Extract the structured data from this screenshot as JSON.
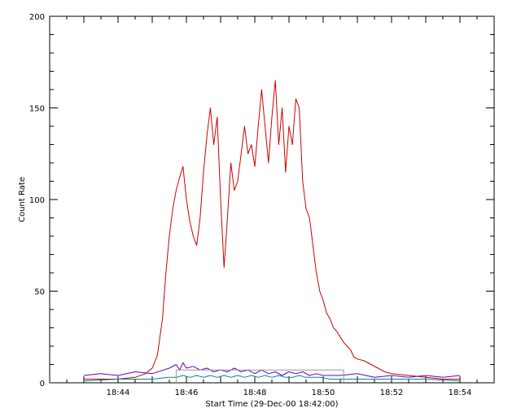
{
  "chart_data": {
    "type": "line",
    "xlabel": "Start Time (29-Dec-00 18:42:00)",
    "ylabel": "Count Rate",
    "xlim": [
      0,
      13
    ],
    "ylim": [
      0,
      200
    ],
    "xticks": [
      {
        "v": 2,
        "label": "18:44"
      },
      {
        "v": 4,
        "label": "18:46"
      },
      {
        "v": 6,
        "label": "18:48"
      },
      {
        "v": 8,
        "label": "18:50"
      },
      {
        "v": 10,
        "label": "18:52"
      },
      {
        "v": 12,
        "label": "18:54"
      }
    ],
    "yticks": [
      {
        "v": 0,
        "label": "0"
      },
      {
        "v": 50,
        "label": "50"
      },
      {
        "v": 100,
        "label": "100"
      },
      {
        "v": 150,
        "label": "150"
      },
      {
        "v": 200,
        "label": "200"
      }
    ],
    "series": [
      {
        "color": "#cc0000",
        "points": [
          [
            1.0,
            2
          ],
          [
            1.5,
            2
          ],
          [
            2.0,
            2
          ],
          [
            2.5,
            3
          ],
          [
            2.8,
            5
          ],
          [
            3.0,
            8
          ],
          [
            3.15,
            15
          ],
          [
            3.3,
            35
          ],
          [
            3.4,
            60
          ],
          [
            3.5,
            80
          ],
          [
            3.6,
            95
          ],
          [
            3.7,
            105
          ],
          [
            3.8,
            112
          ],
          [
            3.9,
            118
          ],
          [
            4.0,
            100
          ],
          [
            4.1,
            88
          ],
          [
            4.2,
            80
          ],
          [
            4.3,
            75
          ],
          [
            4.4,
            90
          ],
          [
            4.5,
            115
          ],
          [
            4.6,
            135
          ],
          [
            4.7,
            150
          ],
          [
            4.8,
            130
          ],
          [
            4.9,
            145
          ],
          [
            5.0,
            100
          ],
          [
            5.1,
            63
          ],
          [
            5.2,
            90
          ],
          [
            5.3,
            120
          ],
          [
            5.4,
            105
          ],
          [
            5.5,
            110
          ],
          [
            5.6,
            125
          ],
          [
            5.7,
            140
          ],
          [
            5.8,
            125
          ],
          [
            5.9,
            130
          ],
          [
            6.0,
            118
          ],
          [
            6.1,
            140
          ],
          [
            6.2,
            160
          ],
          [
            6.3,
            140
          ],
          [
            6.4,
            120
          ],
          [
            6.5,
            145
          ],
          [
            6.6,
            165
          ],
          [
            6.7,
            130
          ],
          [
            6.8,
            150
          ],
          [
            6.9,
            115
          ],
          [
            7.0,
            140
          ],
          [
            7.1,
            130
          ],
          [
            7.2,
            155
          ],
          [
            7.3,
            150
          ],
          [
            7.4,
            110
          ],
          [
            7.5,
            95
          ],
          [
            7.6,
            90
          ],
          [
            7.7,
            75
          ],
          [
            7.8,
            60
          ],
          [
            7.9,
            50
          ],
          [
            8.0,
            45
          ],
          [
            8.1,
            38
          ],
          [
            8.2,
            35
          ],
          [
            8.3,
            30
          ],
          [
            8.4,
            28
          ],
          [
            8.5,
            25
          ],
          [
            8.6,
            22
          ],
          [
            8.7,
            20
          ],
          [
            8.8,
            18
          ],
          [
            8.9,
            14
          ],
          [
            9.0,
            13
          ],
          [
            9.2,
            12
          ],
          [
            9.4,
            10
          ],
          [
            9.6,
            8
          ],
          [
            9.8,
            6
          ],
          [
            10.0,
            5
          ],
          [
            10.5,
            4
          ],
          [
            11.0,
            3
          ],
          [
            11.5,
            2
          ],
          [
            12.0,
            2
          ]
        ]
      },
      {
        "color": "#6600cc",
        "points": [
          [
            1.0,
            4
          ],
          [
            1.5,
            5
          ],
          [
            2.0,
            4
          ],
          [
            2.5,
            6
          ],
          [
            3.0,
            5
          ],
          [
            3.5,
            8
          ],
          [
            3.7,
            10
          ],
          [
            3.8,
            7
          ],
          [
            3.9,
            11
          ],
          [
            4.0,
            8
          ],
          [
            4.2,
            9
          ],
          [
            4.4,
            7
          ],
          [
            4.6,
            8
          ],
          [
            4.8,
            6
          ],
          [
            5.0,
            7
          ],
          [
            5.2,
            6
          ],
          [
            5.4,
            8
          ],
          [
            5.6,
            6
          ],
          [
            5.8,
            7
          ],
          [
            6.0,
            5
          ],
          [
            6.2,
            7
          ],
          [
            6.4,
            5
          ],
          [
            6.6,
            6
          ],
          [
            6.8,
            4
          ],
          [
            7.0,
            6
          ],
          [
            7.2,
            5
          ],
          [
            7.4,
            6
          ],
          [
            7.6,
            4
          ],
          [
            7.8,
            5
          ],
          [
            8.0,
            4
          ],
          [
            8.5,
            4
          ],
          [
            9.0,
            5
          ],
          [
            9.5,
            3
          ],
          [
            10.0,
            4
          ],
          [
            10.5,
            3
          ],
          [
            11.0,
            4
          ],
          [
            11.5,
            3
          ],
          [
            12.0,
            4
          ]
        ]
      },
      {
        "color": "#008888",
        "points": [
          [
            1.0,
            1
          ],
          [
            2.0,
            2
          ],
          [
            2.5,
            2
          ],
          [
            3.0,
            2
          ],
          [
            3.5,
            3
          ],
          [
            3.7,
            3
          ],
          [
            3.9,
            4
          ],
          [
            4.1,
            3
          ],
          [
            4.3,
            4
          ],
          [
            4.5,
            3
          ],
          [
            4.7,
            4
          ],
          [
            4.9,
            3
          ],
          [
            5.1,
            4
          ],
          [
            5.3,
            3
          ],
          [
            5.5,
            4
          ],
          [
            5.7,
            3
          ],
          [
            5.9,
            4
          ],
          [
            6.1,
            3
          ],
          [
            6.3,
            4
          ],
          [
            6.5,
            3
          ],
          [
            6.7,
            4
          ],
          [
            6.9,
            3
          ],
          [
            7.1,
            3
          ],
          [
            7.3,
            4
          ],
          [
            7.5,
            3
          ],
          [
            7.7,
            3
          ],
          [
            7.9,
            3
          ],
          [
            8.2,
            2
          ],
          [
            8.6,
            2
          ],
          [
            9.0,
            2
          ],
          [
            10.0,
            2
          ],
          [
            11.0,
            2
          ],
          [
            12.0,
            1
          ]
        ]
      },
      {
        "color": "#999999",
        "points": [
          [
            3.7,
            0
          ],
          [
            3.7,
            7
          ],
          [
            8.6,
            7
          ],
          [
            8.6,
            0
          ]
        ]
      }
    ]
  }
}
